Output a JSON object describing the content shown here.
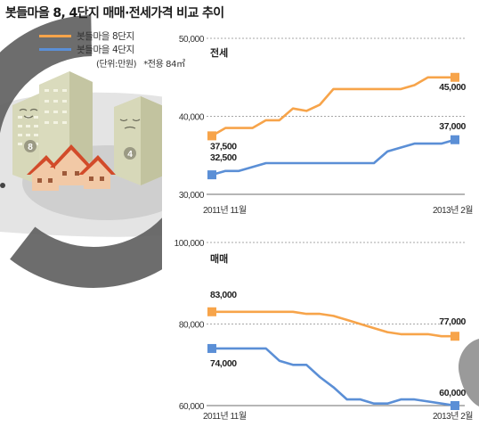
{
  "header": {
    "title": "봇들마을 8, 4단지 매매·전세가격 비교 추이"
  },
  "legend": {
    "items": [
      {
        "label": "봇들마을 8단지",
        "color": "#f7a44a"
      },
      {
        "label": "봇들마을 4단지",
        "color": "#5b8fd6"
      }
    ],
    "unit_note": "(단위:만원)",
    "area_note": "*전용 84㎡"
  },
  "illustration": {
    "building_badges": [
      "8",
      "4"
    ]
  },
  "chart_data": [
    {
      "type": "line",
      "title": "전세",
      "x_start_label": "2011년 11월",
      "x_end_label": "2013년 2월",
      "y_ticks": [
        30000,
        40000,
        50000
      ],
      "y_tick_labels": [
        "30,000",
        "40,000",
        "50,000"
      ],
      "ylim": [
        30000,
        50000
      ],
      "grid": true,
      "series": [
        {
          "name": "봇들마을 8단지",
          "color": "#f7a44a",
          "values": [
            37500,
            38500,
            38500,
            38500,
            39500,
            39500,
            41000,
            40700,
            41500,
            43500,
            43500,
            43500,
            43500,
            43500,
            43500,
            44000,
            45000,
            45000,
            45000
          ],
          "start_label": "37,500",
          "end_label": "45,000"
        },
        {
          "name": "봇들마을 4단지",
          "color": "#5b8fd6",
          "values": [
            32500,
            33000,
            33000,
            33500,
            34000,
            34000,
            34000,
            34000,
            34000,
            34000,
            34000,
            34000,
            34000,
            35500,
            36000,
            36500,
            36500,
            36500,
            37000
          ],
          "start_label": "32,500",
          "end_label": "37,000"
        }
      ]
    },
    {
      "type": "line",
      "title": "매매",
      "x_start_label": "2011년 11월",
      "x_end_label": "2013년 2월",
      "y_ticks": [
        60000,
        80000,
        100000
      ],
      "y_tick_labels": [
        "60,000",
        "80,000",
        "100,000"
      ],
      "ylim": [
        60000,
        100000
      ],
      "grid": true,
      "series": [
        {
          "name": "봇들마을 8단지",
          "color": "#f7a44a",
          "values": [
            83000,
            83000,
            83000,
            83000,
            83000,
            83000,
            83000,
            82500,
            82500,
            82000,
            81000,
            80000,
            79000,
            78000,
            77500,
            77500,
            77500,
            77000,
            77000
          ],
          "start_label": "83,000",
          "end_label": "77,000"
        },
        {
          "name": "봇들마을 4단지",
          "color": "#5b8fd6",
          "values": [
            74000,
            74000,
            74000,
            74000,
            74000,
            71000,
            70000,
            70000,
            67000,
            64500,
            61500,
            61500,
            60500,
            60500,
            61500,
            61500,
            61000,
            60500,
            60000
          ],
          "start_label": "74,000",
          "end_label": "60,000"
        }
      ]
    }
  ]
}
